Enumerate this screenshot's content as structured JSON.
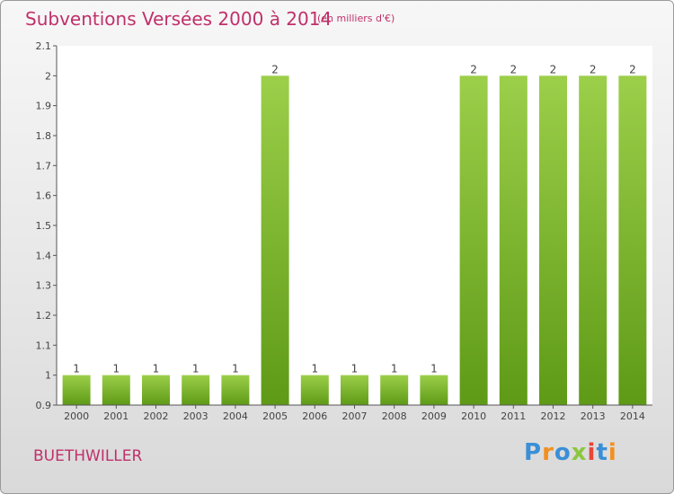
{
  "header": {
    "title": "Subventions Versées 2000 à 2014",
    "subtitle": "(en milliers d'€)"
  },
  "footer": {
    "place": "BUETHWILLER",
    "logo_text": "Proxiti"
  },
  "colors": {
    "title": "#c0306a",
    "bar_top": "#9ccf4a",
    "bar_bottom": "#5e9a16"
  },
  "chart_data": {
    "type": "bar",
    "categories": [
      "2000",
      "2001",
      "2002",
      "2003",
      "2004",
      "2005",
      "2006",
      "2007",
      "2008",
      "2009",
      "2010",
      "2011",
      "2012",
      "2013",
      "2014"
    ],
    "values": [
      1,
      1,
      1,
      1,
      1,
      2,
      1,
      1,
      1,
      1,
      2,
      2,
      2,
      2,
      2
    ],
    "data_labels": [
      "1",
      "1",
      "1",
      "1",
      "1",
      "2",
      "1",
      "1",
      "1",
      "1",
      "2",
      "2",
      "2",
      "2",
      "2"
    ],
    "yticks": [
      "0.9",
      "1",
      "1.1",
      "1.2",
      "1.3",
      "1.4",
      "1.5",
      "1.6",
      "1.7",
      "1.8",
      "1.9",
      "2",
      "2.1"
    ],
    "ylim": [
      0.9,
      2.1
    ],
    "grid": false
  }
}
